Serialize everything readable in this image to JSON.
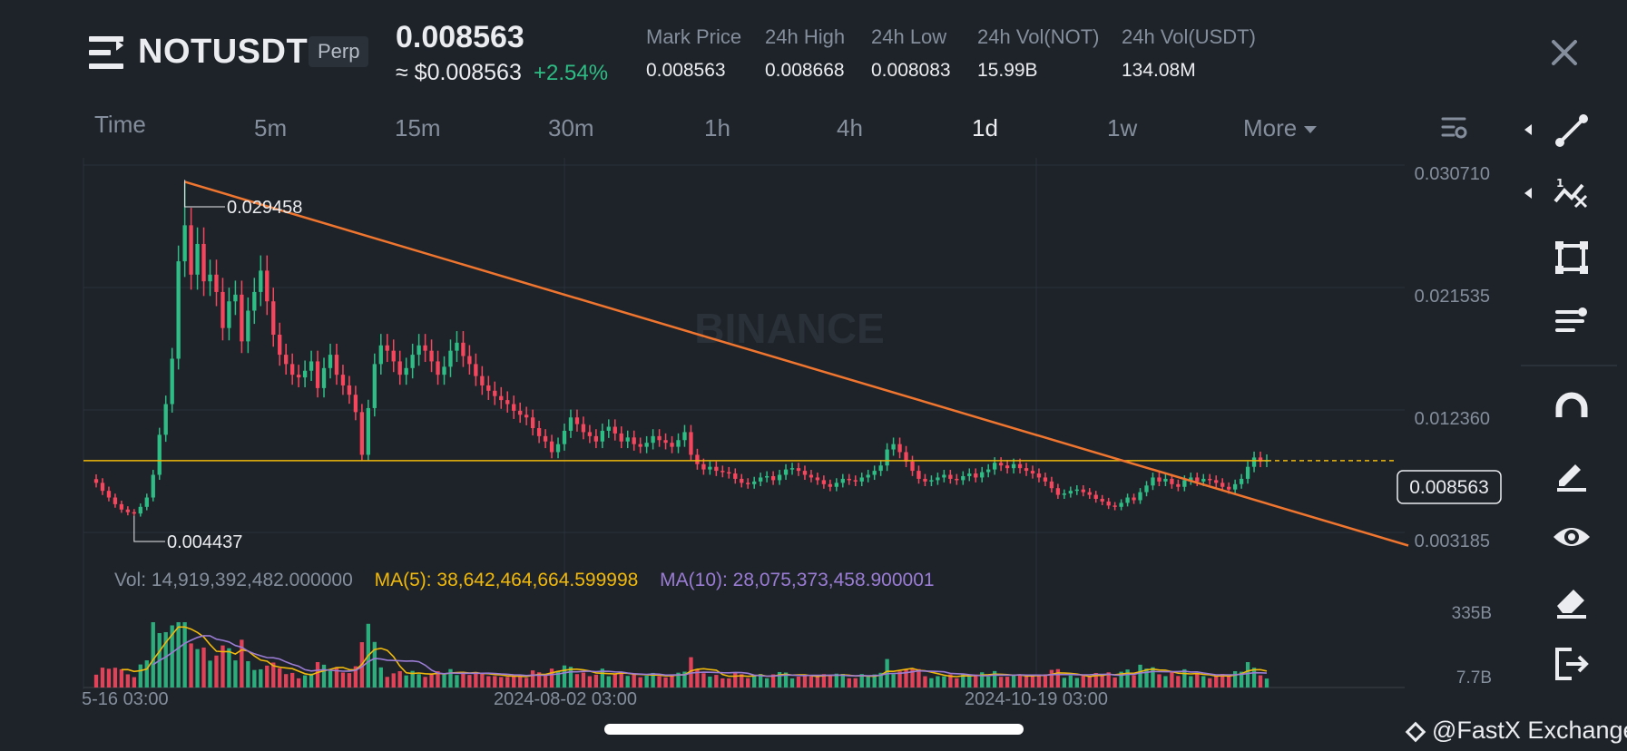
{
  "header": {
    "symbol": "NOTUSDT",
    "contract_type": "Perp",
    "last_price": "0.008563",
    "usd_price": "≈ $0.008563",
    "change_pct": "+2.54%",
    "stats": [
      {
        "label": "Mark Price",
        "value": "0.008563"
      },
      {
        "label": "24h High",
        "value": "0.008668"
      },
      {
        "label": "24h Low",
        "value": "0.008083"
      },
      {
        "label": "24h Vol(NOT)",
        "value": "15.99B"
      },
      {
        "label": "24h Vol(USDT)",
        "value": "134.08M"
      }
    ]
  },
  "timeframes": [
    {
      "label": "Time",
      "active": false
    },
    {
      "label": "5m",
      "active": false
    },
    {
      "label": "15m",
      "active": false
    },
    {
      "label": "30m",
      "active": false
    },
    {
      "label": "1h",
      "active": false
    },
    {
      "label": "4h",
      "active": false
    },
    {
      "label": "1d",
      "active": true
    },
    {
      "label": "1w",
      "active": false
    },
    {
      "label": "More",
      "active": false
    }
  ],
  "toolbar_icons": [
    "trendline-icon",
    "fibonacci-icon",
    "rectangle-icon",
    "text-tool-icon",
    "magnet-icon",
    "pencil-icon",
    "eye-icon",
    "eraser-icon",
    "exit-icon"
  ],
  "colors": {
    "background": "#1e2329",
    "up": "#2ebd85",
    "down": "#f6465d",
    "trendline": "#f0762f",
    "price_line": "#f0b90b",
    "ma5": "#f0b90b",
    "ma10": "#9b7cd4",
    "grid": "#2b3139"
  },
  "chart_data": {
    "type": "candlestick",
    "price_axis_labels": [
      "0.030710",
      "0.021535",
      "0.012360",
      "0.003185"
    ],
    "current_price_label": "0.008563",
    "high_marker": "0.029458",
    "low_marker": "0.004437",
    "time_labels": [
      "5-16 03:00",
      "2024-08-02 03:00",
      "2024-10-19 03:00"
    ],
    "volume_axis_labels": [
      "335B",
      "7.7B"
    ],
    "volume_legend": {
      "vol": "Vol: 14,919,392,482.000000",
      "ma5": "MA(5): 38,642,464,664.599998",
      "ma10": "MA(10): 28,075,373,458.900001"
    },
    "watermark": "BINANCE",
    "close_series": [
      0.0069,
      0.0063,
      0.0058,
      0.0053,
      0.0049,
      0.0047,
      0.0046,
      0.0051,
      0.0058,
      0.0075,
      0.0105,
      0.0128,
      0.0162,
      0.0235,
      0.0262,
      0.0225,
      0.0248,
      0.022,
      0.0225,
      0.0212,
      0.0185,
      0.0205,
      0.021,
      0.0175,
      0.0198,
      0.0212,
      0.0228,
      0.0205,
      0.018,
      0.0165,
      0.0158,
      0.015,
      0.0148,
      0.0153,
      0.016,
      0.014,
      0.0155,
      0.0165,
      0.015,
      0.0142,
      0.0135,
      0.0122,
      0.009,
      0.0125,
      0.0158,
      0.0172,
      0.0168,
      0.016,
      0.015,
      0.0155,
      0.0165,
      0.0172,
      0.0168,
      0.016,
      0.015,
      0.0156,
      0.0168,
      0.0174,
      0.0164,
      0.0158,
      0.0149,
      0.0142,
      0.0138,
      0.0134,
      0.0131,
      0.0128,
      0.0123,
      0.012,
      0.0118,
      0.011,
      0.0104,
      0.01,
      0.0092,
      0.0098,
      0.0108,
      0.0118,
      0.0113,
      0.0107,
      0.0104,
      0.01,
      0.0108,
      0.0111,
      0.0106,
      0.01,
      0.0103,
      0.0098,
      0.0096,
      0.0099,
      0.0104,
      0.0101,
      0.0099,
      0.0096,
      0.0101,
      0.0107,
      0.009,
      0.0083,
      0.0079,
      0.0081,
      0.0078,
      0.0077,
      0.0076,
      0.0072,
      0.0069,
      0.0068,
      0.007,
      0.0073,
      0.0074,
      0.0071,
      0.0075,
      0.0079,
      0.008,
      0.0078,
      0.0075,
      0.0073,
      0.0071,
      0.0068,
      0.0066,
      0.0069,
      0.0072,
      0.0071,
      0.007,
      0.0073,
      0.0075,
      0.0078,
      0.0082,
      0.0094,
      0.0098,
      0.0092,
      0.0085,
      0.0078,
      0.0072,
      0.007,
      0.0071,
      0.0073,
      0.0075,
      0.0072,
      0.0071,
      0.0074,
      0.0076,
      0.0073,
      0.0077,
      0.0079,
      0.0084,
      0.0082,
      0.008,
      0.0083,
      0.008,
      0.0078,
      0.0076,
      0.0073,
      0.007,
      0.0065,
      0.006,
      0.0061,
      0.0063,
      0.0064,
      0.0062,
      0.006,
      0.0057,
      0.0055,
      0.0052,
      0.0051,
      0.0054,
      0.0058,
      0.0056,
      0.0062,
      0.0067,
      0.0073,
      0.007,
      0.0072,
      0.0068,
      0.0066,
      0.0071,
      0.0073,
      0.007,
      0.0072,
      0.0071,
      0.0069,
      0.0066,
      0.0064,
      0.0068,
      0.0072,
      0.0081,
      0.0088,
      0.0085,
      0.0086
    ]
  },
  "footer": {
    "watermark_text": "@FastX Exchange"
  }
}
